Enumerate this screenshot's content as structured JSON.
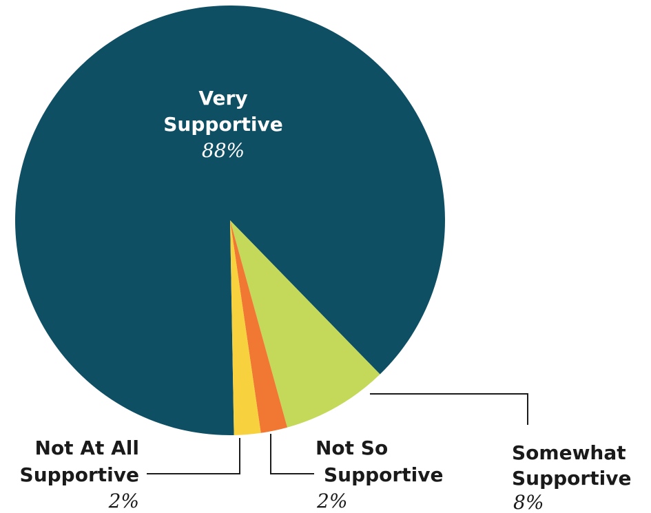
{
  "chart_data": {
    "type": "pie",
    "title": "",
    "slices": [
      {
        "name_lines": [
          "Very",
          "Supportive"
        ],
        "value": 88,
        "value_label": "88%",
        "color": "#0f4f64"
      },
      {
        "name_lines": [
          "Somewhat",
          "Supportive"
        ],
        "value": 8,
        "value_label": "8%",
        "color": "#c4d95a"
      },
      {
        "name_lines": [
          "Not So",
          "Supportive"
        ],
        "value": 2,
        "value_label": "2%",
        "color": "#f07833"
      },
      {
        "name_lines": [
          "Not At All",
          "Supportive"
        ],
        "value": 2,
        "value_label": "2%",
        "color": "#f7d23e"
      }
    ],
    "legend": "none",
    "label_placement": "inside for largest slice, leader lines for others"
  }
}
